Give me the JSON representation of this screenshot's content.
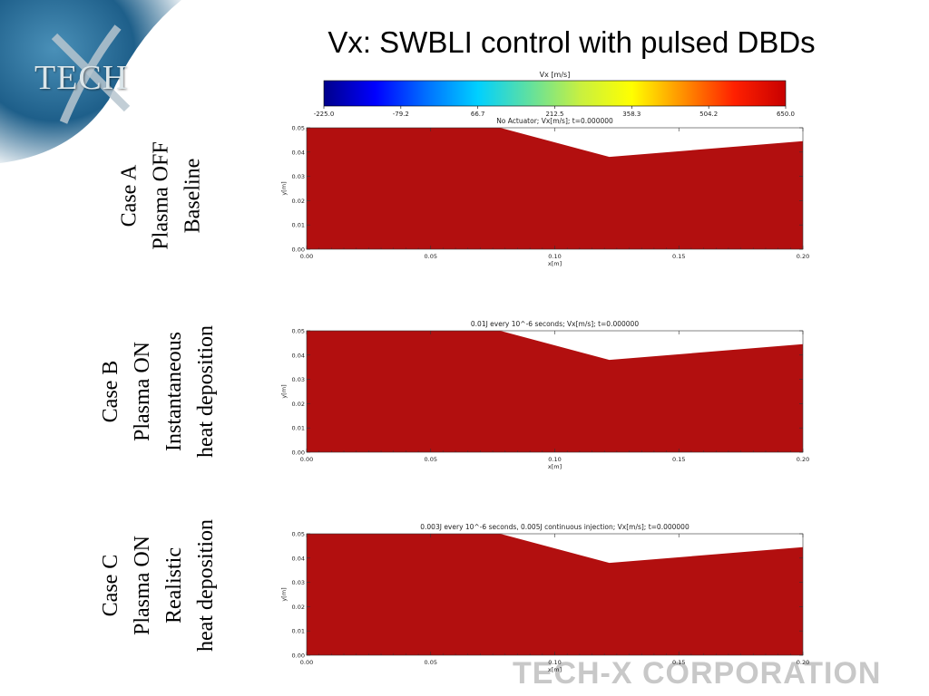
{
  "slide": {
    "title": "Vx: SWBLI control with pulsed DBDs",
    "logo_text": "TECH",
    "footer_brand": "TECH-X CORPORATION"
  },
  "case_labels": [
    {
      "lines": [
        "Case A",
        "Plasma OFF",
        "Baseline"
      ]
    },
    {
      "lines": [
        "Case B",
        "Plasma ON",
        "Instantaneous",
        "heat deposition"
      ]
    },
    {
      "lines": [
        "Case C",
        "Plasma ON",
        "Realistic",
        "heat deposition"
      ]
    }
  ],
  "colorbar": {
    "label": "Vx [m/s]",
    "ticks": [
      "-225.0",
      "-79.2",
      "66.7",
      "212.5",
      "358.3",
      "504.2",
      "650.0"
    ],
    "colors": [
      "#00008b",
      "#0000ff",
      "#0070ff",
      "#00d0ff",
      "#60e0a0",
      "#c8f040",
      "#ffff00",
      "#ff9000",
      "#ff2000",
      "#c80000"
    ]
  },
  "chart_data": [
    {
      "type": "heatmap",
      "title": "No Actuator; Vx[m/s]; t=0.000000",
      "xlabel": "x[m]",
      "ylabel": "y[m]",
      "xlim": [
        0.0,
        0.2
      ],
      "ylim": [
        0.0,
        0.05
      ],
      "x_ticks": [
        "0.00",
        "0.05",
        "0.10",
        "0.15",
        "0.20"
      ],
      "y_ticks": [
        "0.00",
        "0.01",
        "0.02",
        "0.03",
        "0.04",
        "0.05"
      ],
      "fill_color": "#b20f0f",
      "upper_boundary": {
        "x": [
          0.0,
          0.078,
          0.122,
          0.2
        ],
        "y": [
          0.05,
          0.05,
          0.038,
          0.0445
        ]
      }
    },
    {
      "type": "heatmap",
      "title": "0.01J every 10^-6 seconds; Vx[m/s]; t=0.000000",
      "xlabel": "x[m]",
      "ylabel": "y[m]",
      "xlim": [
        0.0,
        0.2
      ],
      "ylim": [
        0.0,
        0.05
      ],
      "x_ticks": [
        "0.00",
        "0.05",
        "0.10",
        "0.15",
        "0.20"
      ],
      "y_ticks": [
        "0.00",
        "0.01",
        "0.02",
        "0.03",
        "0.04",
        "0.05"
      ],
      "fill_color": "#b20f0f",
      "upper_boundary": {
        "x": [
          0.0,
          0.078,
          0.122,
          0.2
        ],
        "y": [
          0.05,
          0.05,
          0.038,
          0.0445
        ]
      }
    },
    {
      "type": "heatmap",
      "title": "0.003J every 10^-6 seconds, 0.005J continuous injection; Vx[m/s]; t=0.000000",
      "xlabel": "x[m]",
      "ylabel": "y[m]",
      "xlim": [
        0.0,
        0.2
      ],
      "ylim": [
        0.0,
        0.05
      ],
      "x_ticks": [
        "0.00",
        "0.05",
        "0.10",
        "0.15",
        "0.20"
      ],
      "y_ticks": [
        "0.00",
        "0.01",
        "0.02",
        "0.03",
        "0.04",
        "0.05"
      ],
      "fill_color": "#b20f0f",
      "upper_boundary": {
        "x": [
          0.0,
          0.078,
          0.122,
          0.2
        ],
        "y": [
          0.05,
          0.05,
          0.038,
          0.0445
        ]
      }
    }
  ]
}
